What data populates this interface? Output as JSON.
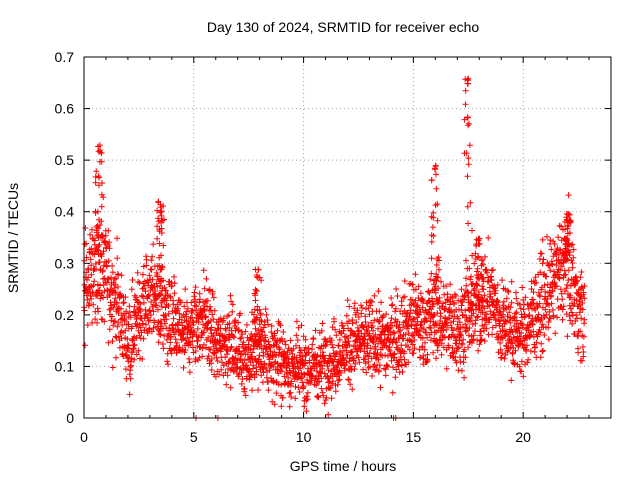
{
  "chart_data": {
    "type": "scatter",
    "title": "Day 130 of 2024, SRMTID for receiver echo",
    "xlabel": "GPS time / hours",
    "ylabel": "SRMTID / TECUs",
    "xlim": [
      0,
      24
    ],
    "ylim": [
      0,
      0.7
    ],
    "xticks": [
      0,
      5,
      10,
      15,
      20
    ],
    "xtick_labels": [
      "0",
      "5",
      "10",
      "15",
      "20"
    ],
    "yticks": [
      0,
      0.1,
      0.2,
      0.3,
      0.4,
      0.5,
      0.6,
      0.7
    ],
    "ytick_labels": [
      "0",
      "0.1",
      "0.2",
      "0.3",
      "0.4",
      "0.5",
      "0.6",
      "0.7"
    ],
    "grid": true,
    "marker": "+",
    "color": "#ff0000",
    "envelope": {
      "description": "Approximate median SRMTID (TECU) by GPS hour read from the scattered '+' points",
      "x": [
        0,
        0.5,
        1,
        1.5,
        2,
        2.5,
        3,
        3.5,
        4,
        4.5,
        5,
        5.5,
        6,
        6.5,
        7,
        7.5,
        8,
        8.5,
        9,
        9.5,
        10,
        10.5,
        11,
        11.5,
        12,
        12.5,
        13,
        13.5,
        14,
        14.5,
        15,
        15.5,
        16,
        16.5,
        17,
        17.5,
        18,
        18.5,
        19,
        19.5,
        20,
        20.5,
        21,
        21.5,
        22,
        22.5,
        22.8
      ],
      "y": [
        0.25,
        0.3,
        0.28,
        0.22,
        0.15,
        0.2,
        0.24,
        0.22,
        0.18,
        0.16,
        0.17,
        0.2,
        0.14,
        0.15,
        0.13,
        0.12,
        0.13,
        0.12,
        0.11,
        0.1,
        0.09,
        0.1,
        0.11,
        0.12,
        0.14,
        0.15,
        0.15,
        0.15,
        0.15,
        0.17,
        0.19,
        0.18,
        0.2,
        0.19,
        0.17,
        0.2,
        0.22,
        0.24,
        0.18,
        0.17,
        0.16,
        0.2,
        0.23,
        0.27,
        0.3,
        0.22,
        0.19
      ]
    },
    "peaks": {
      "description": "Notable high-value clusters visible in the plot",
      "x": [
        0.7,
        3.5,
        7.9,
        16.0,
        17.5,
        18.0,
        22.0
      ],
      "y": [
        0.53,
        0.42,
        0.29,
        0.49,
        0.66,
        0.35,
        0.4
      ]
    },
    "zeros": {
      "description": "Points plotted at zero",
      "x": [
        5.1,
        6.1,
        14.1,
        14.2
      ],
      "y": [
        0,
        0,
        0,
        0
      ]
    }
  }
}
